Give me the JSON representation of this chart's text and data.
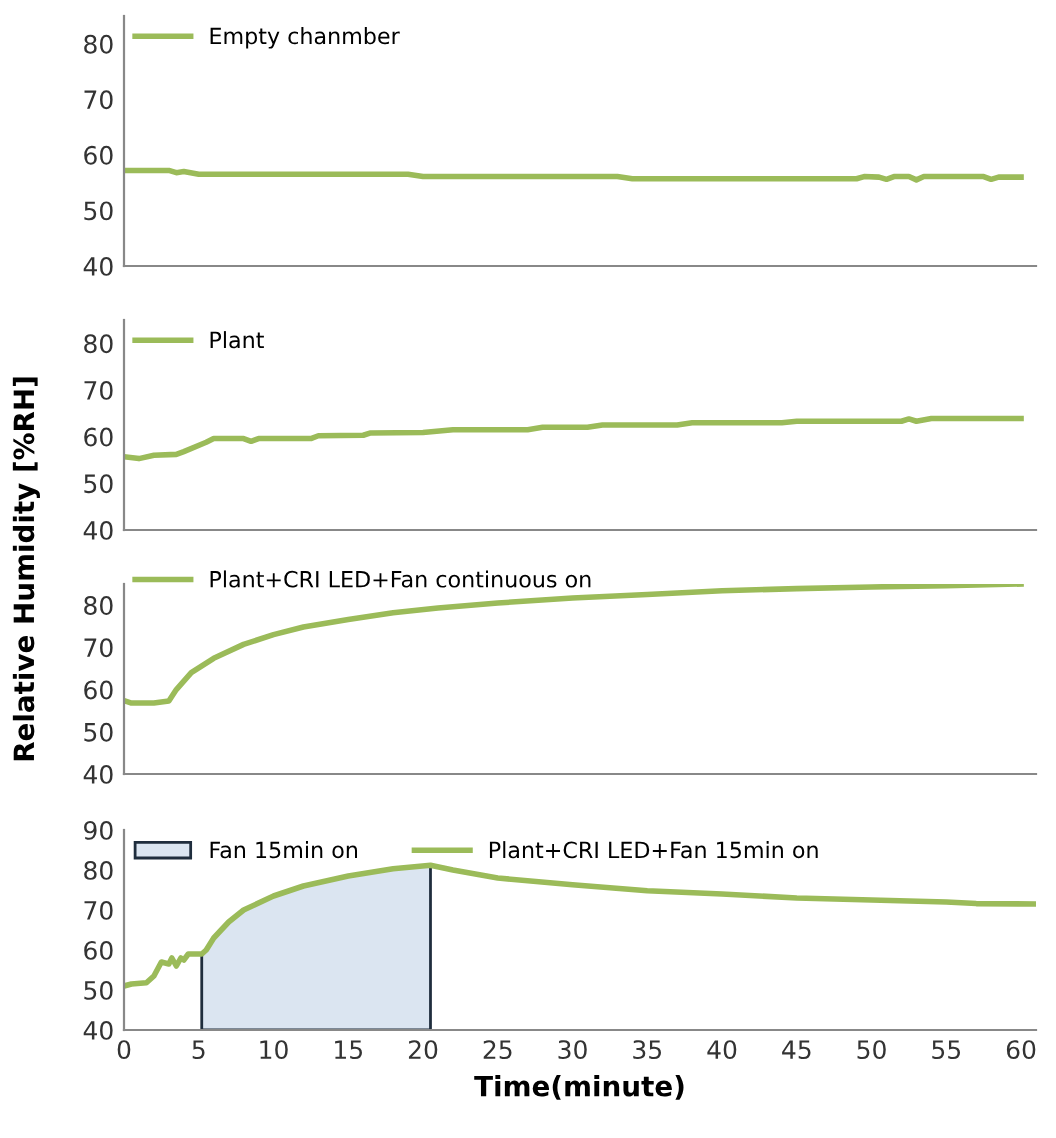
{
  "chart_data": [
    {
      "type": "line",
      "xlim": [
        0,
        61
      ],
      "ylim": [
        40,
        85
      ],
      "yticks": [
        40,
        50,
        60,
        70,
        80
      ],
      "tick_labels": "y",
      "grid": false,
      "legend": "top left",
      "series": [
        {
          "name": "Empty chanmber",
          "color": "#9bbb59",
          "x": [
            0,
            3,
            3.5,
            4,
            5,
            19,
            20,
            33,
            34,
            49,
            49.5,
            50.5,
            51,
            51.5,
            52.5,
            53,
            53.5,
            57.5,
            58,
            58.5,
            60
          ],
          "values": [
            57.2,
            57.2,
            56.8,
            57,
            56.5,
            56.5,
            56.1,
            56.1,
            55.7,
            55.7,
            56.1,
            56,
            55.6,
            56.1,
            56.1,
            55.5,
            56.1,
            56.1,
            55.6,
            56,
            56
          ]
        }
      ]
    },
    {
      "type": "line",
      "xlim": [
        0,
        61
      ],
      "ylim": [
        40,
        85
      ],
      "yticks": [
        40,
        50,
        60,
        70,
        80
      ],
      "tick_labels": "y",
      "grid": false,
      "legend": "top left",
      "ylabel": "Relative Humidity [%RH]",
      "series": [
        {
          "name": "Plant",
          "color": "#9bbb59",
          "x": [
            0,
            1,
            2,
            3.5,
            4,
            5.5,
            6,
            8,
            8.5,
            9,
            12.5,
            13,
            16,
            16.5,
            20,
            22,
            27,
            28,
            31,
            32,
            37,
            38,
            44,
            45,
            52,
            52.5,
            53,
            54,
            60
          ],
          "values": [
            55.7,
            55.3,
            56,
            56.2,
            56.8,
            58.8,
            59.6,
            59.6,
            59,
            59.6,
            59.6,
            60.2,
            60.3,
            60.8,
            60.9,
            61.5,
            61.5,
            62,
            62,
            62.5,
            62.5,
            63,
            63,
            63.3,
            63.3,
            63.8,
            63.3,
            63.9,
            63.9
          ]
        }
      ]
    },
    {
      "type": "line",
      "xlim": [
        0,
        61
      ],
      "ylim": [
        40,
        85
      ],
      "yticks": [
        40,
        50,
        60,
        70,
        80
      ],
      "tick_labels": "y",
      "grid": false,
      "legend": "top left",
      "series": [
        {
          "name": "Plant+CRI LED+Fan continuous on",
          "color": "#9bbb59",
          "x": [
            0,
            0.5,
            2,
            3,
            3.5,
            4.5,
            6,
            8,
            10,
            12,
            15,
            18,
            21,
            25,
            30,
            35,
            40,
            45,
            50,
            55,
            60
          ],
          "values": [
            57.4,
            56.8,
            56.8,
            57.3,
            60,
            64,
            67.4,
            70.7,
            73,
            74.8,
            76.6,
            78.2,
            79.3,
            80.5,
            81.7,
            82.5,
            83.4,
            83.9,
            84.3,
            84.6,
            85
          ]
        }
      ]
    },
    {
      "type": "line",
      "xlim": [
        0,
        61
      ],
      "ylim": [
        40,
        90
      ],
      "yticks": [
        40,
        50,
        60,
        70,
        80,
        90
      ],
      "xticks": [
        0,
        5,
        10,
        15,
        20,
        25,
        30,
        35,
        40,
        45,
        50,
        55,
        60
      ],
      "xlabel": "Time(minute)",
      "grid": false,
      "legend": "top left",
      "series": [
        {
          "name": "Fan 15min on",
          "type": "area",
          "color": "#dbe5f1",
          "x": [
            5.2,
            5.5,
            6,
            7,
            8,
            10,
            12,
            15,
            18,
            20.5
          ],
          "values": [
            59,
            60,
            63,
            67,
            70,
            73.5,
            76,
            78.5,
            80.3,
            81.2
          ]
        },
        {
          "name": "Plant+CRI LED+Fan 15min on",
          "color": "#9bbb59",
          "x": [
            0,
            0.5,
            1.5,
            2,
            2.5,
            3,
            3.2,
            3.5,
            3.8,
            4,
            4.3,
            5.2,
            5.5,
            6,
            7,
            8,
            10,
            12,
            15,
            18,
            20.5,
            22,
            25,
            30,
            35,
            40,
            45,
            50,
            55,
            57,
            61
          ],
          "values": [
            51,
            51.5,
            51.8,
            53.5,
            57,
            56.5,
            58,
            56,
            58,
            57.5,
            59,
            59,
            60,
            63,
            67,
            70,
            73.5,
            76,
            78.5,
            80.3,
            81.2,
            80,
            78,
            76.3,
            74.8,
            74,
            73,
            72.5,
            72,
            71.6,
            71.5
          ]
        }
      ]
    }
  ]
}
